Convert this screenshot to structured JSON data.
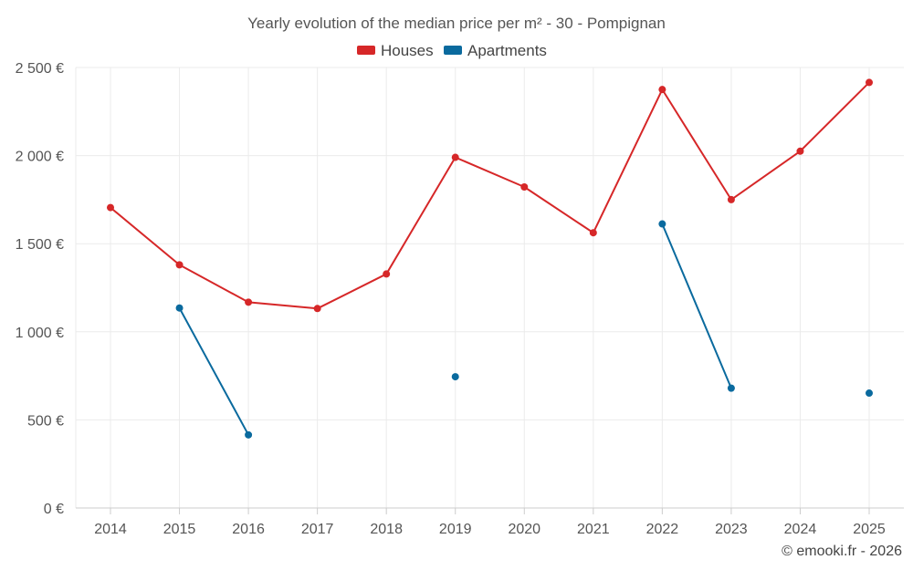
{
  "chart_data": {
    "type": "line",
    "title": "Yearly evolution of the median price per m² - 30 - Pompignan",
    "categories": [
      "2014",
      "2015",
      "2016",
      "2017",
      "2018",
      "2019",
      "2020",
      "2021",
      "2022",
      "2023",
      "2024",
      "2025"
    ],
    "series": [
      {
        "name": "Houses",
        "color": "#d62728",
        "values": [
          1705,
          1380,
          1168,
          1132,
          1328,
          1990,
          1822,
          1562,
          2375,
          1750,
          2025,
          2415
        ]
      },
      {
        "name": "Apartments",
        "color": "#0a6a9e",
        "values": [
          null,
          1135,
          415,
          null,
          null,
          745,
          null,
          null,
          1612,
          680,
          null,
          652
        ]
      }
    ],
    "ylim": [
      0,
      2500
    ],
    "yticks": [
      0,
      500,
      1000,
      1500,
      2000,
      2500
    ],
    "ytick_labels": [
      "0 €",
      "500 €",
      "1 000 €",
      "1 500 €",
      "2 000 €",
      "2 500 €"
    ],
    "xlabel": "",
    "ylabel": "",
    "legend_position": "top-center",
    "grid": true
  },
  "credit": "© emooki.fr - 2026"
}
